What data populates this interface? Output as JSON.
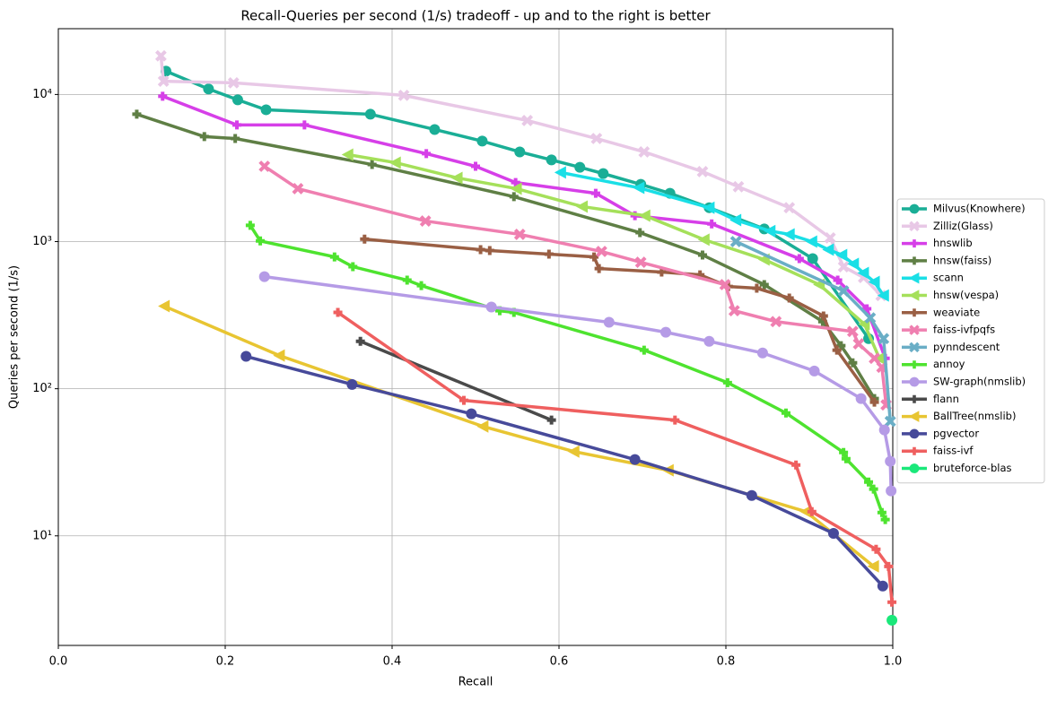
{
  "chart_data": {
    "type": "line",
    "title": "Recall-Queries per second (1/s) tradeoff - up and to the right is better",
    "x_label": "Recall",
    "y_label": "Queries per second (1/s)",
    "xlim": [
      0,
      1
    ],
    "xticks": [
      {
        "value": 0,
        "label": "0.0"
      },
      0.2,
      0.4,
      0.6,
      0.8,
      {
        "value": 1,
        "label": "1.0"
      }
    ],
    "ylim": [
      1.8,
      28000
    ],
    "y_scale": "log",
    "yticks": [
      {
        "value": 10,
        "label": "10¹"
      },
      {
        "value": 100,
        "label": "10²"
      },
      {
        "value": 1000,
        "label": "10³"
      },
      {
        "value": 10000,
        "label": "10⁴"
      }
    ],
    "grid": true,
    "legend": "right",
    "series": [
      {
        "name": "Milvus(Knowhere)",
        "color": "#1aae96",
        "marker": "circle",
        "x": [
          0.129,
          0.18,
          0.215,
          0.249,
          0.374,
          0.451,
          0.508,
          0.553,
          0.591,
          0.625,
          0.653,
          0.698,
          0.733,
          0.78,
          0.846,
          0.904,
          0.971
        ],
        "values": [
          14400,
          10900,
          9200,
          7870,
          7340,
          5780,
          4820,
          4070,
          3590,
          3200,
          2900,
          2450,
          2130,
          1700,
          1220,
          766,
          219
        ]
      },
      {
        "name": "Zilliz(Glass)",
        "color": "#e8c8e6",
        "marker": "x",
        "x": [
          0.123,
          0.126,
          0.21,
          0.414,
          0.562,
          0.645,
          0.702,
          0.772,
          0.815,
          0.876,
          0.925,
          0.941,
          0.965,
          0.986
        ],
        "values": [
          18300,
          12300,
          12000,
          9860,
          6650,
          5020,
          4070,
          2990,
          2360,
          1700,
          1060,
          675,
          570,
          430
        ]
      },
      {
        "name": "hnswlib",
        "color": "#d63fe8",
        "marker": "plus",
        "x": [
          0.125,
          0.214,
          0.295,
          0.441,
          0.5,
          0.548,
          0.644,
          0.691,
          0.783,
          0.888,
          0.934,
          0.969,
          0.991
        ],
        "values": [
          9720,
          6210,
          6210,
          3960,
          3250,
          2520,
          2130,
          1500,
          1320,
          766,
          547,
          349,
          161
        ]
      },
      {
        "name": "hnsw(faiss)",
        "color": "#5f7f45",
        "marker": "plus",
        "x": [
          0.094,
          0.175,
          0.212,
          0.376,
          0.546,
          0.697,
          0.772,
          0.846,
          0.916,
          0.938,
          0.952,
          0.978
        ],
        "values": [
          7340,
          5170,
          5020,
          3340,
          2020,
          1150,
          811,
          510,
          286,
          196,
          150,
          85.7
        ]
      },
      {
        "name": "scann",
        "color": "#1adfe6",
        "marker": "triangle",
        "x": [
          0.602,
          0.696,
          0.78,
          0.812,
          0.853,
          0.876,
          0.903,
          0.923,
          0.939,
          0.953,
          0.965,
          0.978,
          0.989
        ],
        "values": [
          2950,
          2320,
          1700,
          1400,
          1180,
          1120,
          1000,
          881,
          811,
          705,
          612,
          532,
          430
        ]
      },
      {
        "name": "hnsw(vespa)",
        "color": "#a5e05a",
        "marker": "triangle",
        "x": [
          0.347,
          0.404,
          0.478,
          0.549,
          0.628,
          0.703,
          0.774,
          0.846,
          0.912,
          0.966,
          0.984
        ],
        "values": [
          3900,
          3440,
          2710,
          2290,
          1730,
          1500,
          1030,
          755,
          510,
          275,
          161
        ]
      },
      {
        "name": "weaviate",
        "color": "#9a5f44",
        "marker": "plus",
        "x": [
          0.367,
          0.506,
          0.517,
          0.588,
          0.642,
          0.648,
          0.723,
          0.769,
          0.803,
          0.837,
          0.876,
          0.917,
          0.933,
          0.978
        ],
        "values": [
          1040,
          881,
          869,
          822,
          787,
          656,
          621,
          594,
          495,
          482,
          413,
          312,
          183,
          81
        ]
      },
      {
        "name": "faiss-ivfpqfs",
        "color": "#ef7fb0",
        "marker": "x",
        "x": [
          0.247,
          0.287,
          0.44,
          0.553,
          0.651,
          0.698,
          0.799,
          0.81,
          0.86,
          0.952,
          0.959,
          0.978,
          0.987,
          0.992
        ],
        "values": [
          3250,
          2290,
          1380,
          1120,
          857,
          724,
          510,
          339,
          286,
          245,
          202,
          161,
          140,
          77.6
        ]
      },
      {
        "name": "pynndescent",
        "color": "#6aaec6",
        "marker": "x",
        "x": [
          0.812,
          0.941,
          0.973,
          0.989,
          0.997
        ],
        "values": [
          1000,
          462,
          303,
          219,
          60
        ]
      },
      {
        "name": "annoy",
        "color": "#4ee32f",
        "marker": "plus",
        "x": [
          0.23,
          0.242,
          0.331,
          0.353,
          0.418,
          0.435,
          0.529,
          0.546,
          0.702,
          0.802,
          0.872,
          0.941,
          0.944,
          0.971,
          0.977,
          0.987,
          0.991
        ],
        "values": [
          1290,
          1010,
          787,
          675,
          547,
          502,
          339,
          330,
          183,
          110,
          68.4,
          36.9,
          33.4,
          23.2,
          20.8,
          14.4,
          12.9
        ]
      },
      {
        "name": "SW-graph(nmslib)",
        "color": "#b59be6",
        "marker": "circle",
        "x": [
          0.247,
          0.519,
          0.66,
          0.728,
          0.78,
          0.844,
          0.906,
          0.962,
          0.99,
          0.997,
          0.998
        ],
        "values": [
          578,
          359,
          283,
          242,
          210,
          175,
          132,
          85.7,
          52.5,
          32.1,
          20.2
        ]
      },
      {
        "name": "flann",
        "color": "#4a4a4a",
        "marker": "plus",
        "x": [
          0.362,
          0.591
        ],
        "values": [
          210,
          61.2
        ]
      },
      {
        "name": "BallTree(nmslib)",
        "color": "#e8c532",
        "marker": "triangle",
        "x": [
          0.127,
          0.265,
          0.509,
          0.618,
          0.731,
          0.896,
          0.977
        ],
        "values": [
          364,
          168,
          55.4,
          37.4,
          27.9,
          14.6,
          6.21
        ]
      },
      {
        "name": "pgvector",
        "color": "#474a9a",
        "marker": "circle",
        "x": [
          0.225,
          0.352,
          0.495,
          0.691,
          0.831,
          0.929,
          0.988
        ],
        "values": [
          166,
          107,
          67.5,
          33,
          18.8,
          10.4,
          4.56
        ]
      },
      {
        "name": "faiss-ivf",
        "color": "#ef5f5f",
        "marker": "plus",
        "x": [
          0.335,
          0.486,
          0.739,
          0.884,
          0.903,
          0.98,
          0.995,
          0.999
        ],
        "values": [
          330,
          83.3,
          61.2,
          30.3,
          14.6,
          8.1,
          6.2,
          3.54
        ]
      },
      {
        "name": "bruteforce-blas",
        "color": "#1ae87a",
        "marker": "circle",
        "x": [
          0.999
        ],
        "values": [
          2.67
        ]
      }
    ]
  }
}
